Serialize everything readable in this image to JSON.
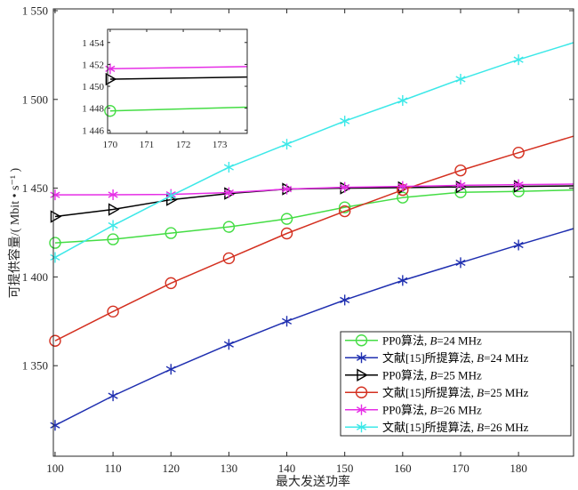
{
  "chart_data": [
    {
      "type": "line",
      "xlabel": "最大发送功率",
      "ylabel": "可提供容量/( Mbit • s⁻¹ )",
      "xlim": [
        99.7,
        189.5
      ],
      "ylim": [
        1299,
        1551
      ],
      "xticks": [
        100,
        110,
        120,
        130,
        140,
        150,
        160,
        170,
        180
      ],
      "xtick_labels": [
        "100",
        "110",
        "120",
        "130",
        "140",
        "150",
        "160",
        "170",
        "180"
      ],
      "yticks": [
        1350,
        1400,
        1450,
        1500,
        1550
      ],
      "ytick_labels": [
        "1 350",
        "1 400",
        "1 450",
        "1 500",
        "1 550"
      ],
      "grid": false,
      "legend": "bottom-right",
      "x": [
        100,
        110,
        120,
        130,
        140,
        150,
        160,
        170,
        180,
        190
      ],
      "series": [
        {
          "name": "PP0算法, B=24 MHz",
          "color": "#44dd44",
          "marker": "circle",
          "values": [
            1419.2,
            1421.2,
            1424.7,
            1428.2,
            1432.7,
            1439.2,
            1444.7,
            1447.7,
            1448.2,
            1449.0
          ]
        },
        {
          "name": "文献[15]所提算法, B=24 MHz",
          "color": "#1f2fb0",
          "marker": "asterisk",
          "values": [
            1316.4,
            1333.0,
            1348.0,
            1362.0,
            1375.0,
            1387.0,
            1398.0,
            1408.0,
            1418.0,
            1427.7
          ]
        },
        {
          "name": "PP0算法, B=25 MHz",
          "color": "#000000",
          "marker": "triangle-right",
          "values": [
            1434.0,
            1438.0,
            1443.5,
            1447.0,
            1449.5,
            1450.0,
            1450.3,
            1450.7,
            1451.0,
            1451.3
          ]
        },
        {
          "name": "文献[15]所提算法, B=25 MHz",
          "color": "#d43020",
          "marker": "circle",
          "values": [
            1364.0,
            1380.5,
            1396.5,
            1410.5,
            1424.5,
            1437.0,
            1449.0,
            1460.0,
            1470.0,
            1479.8
          ]
        },
        {
          "name": "PP0算法, B=26 MHz",
          "color": "#e62ee6",
          "marker": "asterisk",
          "values": [
            1446.2,
            1446.3,
            1446.5,
            1447.5,
            1449.5,
            1450.5,
            1451.0,
            1451.6,
            1452.0,
            1452.3
          ]
        },
        {
          "name": "文献[15]所提算法, B=26 MHz",
          "color": "#3ce8e8",
          "marker": "asterisk",
          "values": [
            1411.0,
            1429.0,
            1445.7,
            1461.8,
            1474.8,
            1487.8,
            1499.4,
            1511.4,
            1522.4,
            1532.5
          ]
        }
      ]
    },
    {
      "type": "line",
      "xlim": [
        169.93,
        173.75
      ],
      "ylim": [
        1445.7,
        1455.2
      ],
      "xticks": [
        170,
        171,
        172,
        173
      ],
      "xtick_labels": [
        "170",
        "171",
        "172",
        "173"
      ],
      "yticks": [
        1446,
        1448,
        1450,
        1452,
        1454
      ],
      "ytick_labels": [
        "1 446",
        "1 448",
        "1 450",
        "1 452",
        "1 454"
      ],
      "grid": false,
      "x": [
        170,
        173.75
      ],
      "series": [
        {
          "color": "#44dd44",
          "marker": "circle",
          "values": [
            1447.75,
            1448.1
          ]
        },
        {
          "color": "#000000",
          "marker": "triangle-right",
          "values": [
            1450.65,
            1450.85
          ]
        },
        {
          "color": "#e62ee6",
          "marker": "asterisk",
          "values": [
            1451.6,
            1451.8
          ]
        }
      ]
    }
  ]
}
